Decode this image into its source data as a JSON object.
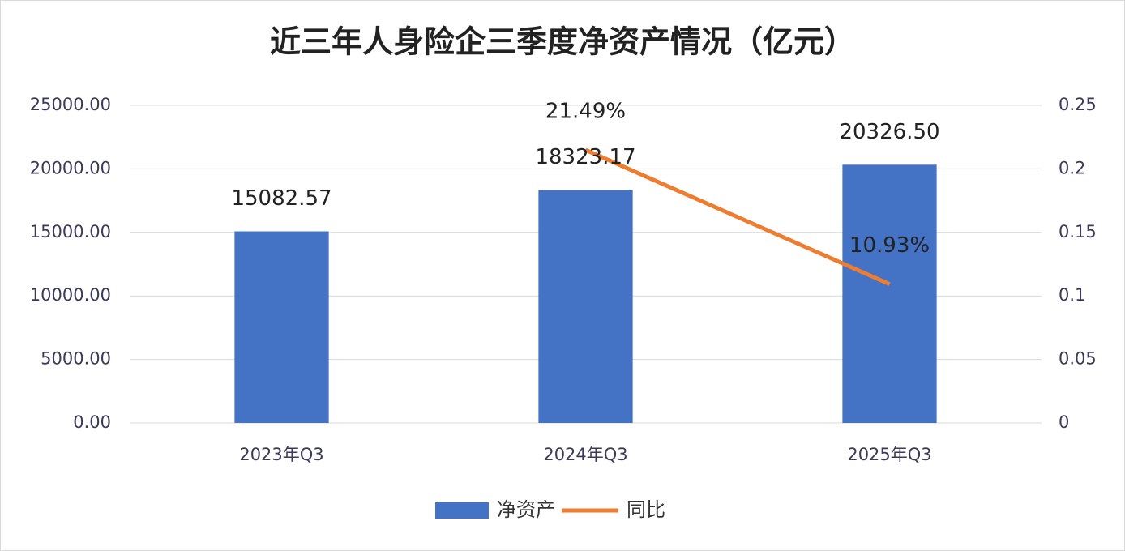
{
  "chart_data": {
    "type": "combo",
    "title": "近三年人身险企三季度净资产情况（亿元）",
    "categories": [
      "2023年Q3",
      "2024年Q3",
      "2025年Q3"
    ],
    "series": [
      {
        "name": "净资产",
        "type": "bar",
        "color": "#4472c4",
        "values": [
          15082.57,
          18323.17,
          20326.5
        ],
        "value_labels": [
          "15082.57",
          "18323.17",
          "20326.50"
        ]
      },
      {
        "name": "同比",
        "type": "line",
        "axis": "y2",
        "color": "#ed7d31",
        "values": [
          null,
          0.2149,
          0.1093
        ],
        "value_labels": [
          null,
          "21.49%",
          "10.93%"
        ]
      }
    ],
    "ylim": [
      0,
      25000
    ],
    "yticks": [
      {
        "value": 0,
        "label": "0.00"
      },
      {
        "value": 5000,
        "label": "5000.00"
      },
      {
        "value": 10000,
        "label": "10000.00"
      },
      {
        "value": 15000,
        "label": "15000.00"
      },
      {
        "value": 20000,
        "label": "20000.00"
      },
      {
        "value": 25000,
        "label": "25000.00"
      }
    ],
    "y2lim": [
      0,
      0.25
    ],
    "y2ticks": [
      0,
      0.05,
      0.1,
      0.15,
      0.2,
      0.25
    ],
    "grid": true,
    "legend": "bottom"
  }
}
